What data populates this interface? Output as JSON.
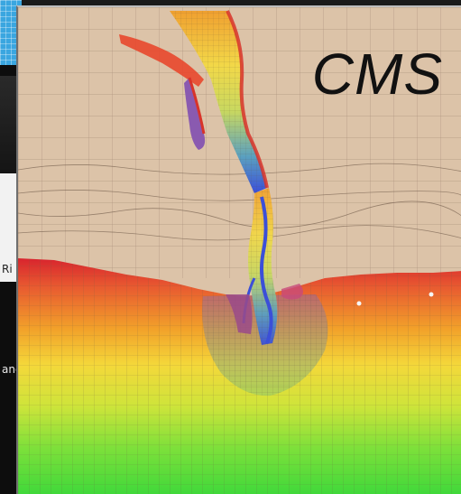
{
  "overlay_label": "CMS",
  "background_slide": {
    "partial_text_1": "Ri",
    "partial_text_2": "anc"
  },
  "colors": {
    "land": "#dcc3a8",
    "grid_line": "#8c7560",
    "depth_shallow": "#e4332a",
    "depth_mid": "#f0c020",
    "depth_deep": "#4ad43a",
    "channel_blue": "#3b4fd8",
    "channel_yellow": "#e8e04a"
  },
  "icons": [
    "model-grid-image"
  ]
}
